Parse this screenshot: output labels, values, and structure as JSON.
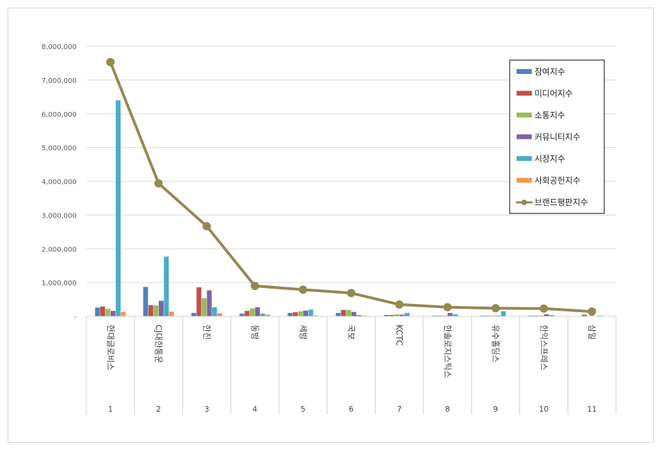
{
  "chart_data": {
    "type": "bar",
    "categories": [
      "1",
      "2",
      "3",
      "4",
      "5",
      "6",
      "7",
      "8",
      "9",
      "10",
      "11"
    ],
    "category_names": [
      "현대글로비스",
      "CJ대한통운",
      "한진",
      "동방",
      "세방",
      "국보",
      "KCTC",
      "한솔로지스틱스",
      "유수홀딩스",
      "한익스프레스",
      "삼일"
    ],
    "yticks": [
      "-",
      "1,000,000",
      "2,000,000",
      "3,000,000",
      "4,000,000",
      "5,000,000",
      "6,000,000",
      "7,000,000",
      "8,000,000"
    ],
    "ylim": [
      0,
      8000000
    ],
    "grid": true,
    "legend_position": "top-right",
    "series": [
      {
        "name": "참여지수",
        "type": "bar",
        "color": "#4F81BD",
        "values": [
          260000,
          870000,
          100000,
          80000,
          100000,
          100000,
          40000,
          20000,
          20000,
          20000,
          0
        ]
      },
      {
        "name": "미디어지수",
        "type": "bar",
        "color": "#C0504D",
        "values": [
          290000,
          330000,
          860000,
          160000,
          120000,
          190000,
          40000,
          20000,
          20000,
          20000,
          50000
        ]
      },
      {
        "name": "소통지수",
        "type": "bar",
        "color": "#9BBB59",
        "values": [
          220000,
          320000,
          540000,
          230000,
          150000,
          190000,
          60000,
          20000,
          20000,
          20000,
          10000
        ]
      },
      {
        "name": "커뮤니티지수",
        "type": "bar",
        "color": "#8064A2",
        "values": [
          160000,
          460000,
          770000,
          270000,
          170000,
          130000,
          50000,
          100000,
          20000,
          60000,
          10000
        ]
      },
      {
        "name": "시장지수",
        "type": "bar",
        "color": "#4BACC6",
        "values": [
          6400000,
          1770000,
          270000,
          80000,
          200000,
          40000,
          100000,
          60000,
          150000,
          40000,
          20000
        ]
      },
      {
        "name": "사회공헌지수",
        "type": "bar",
        "color": "#F79646",
        "values": [
          130000,
          140000,
          90000,
          50000,
          20000,
          20000,
          10000,
          10000,
          10000,
          10000,
          10000
        ]
      },
      {
        "name": "브랜드평판지수",
        "type": "line",
        "color": "#938953",
        "values": [
          7530000,
          3940000,
          2670000,
          900000,
          790000,
          690000,
          350000,
          270000,
          240000,
          230000,
          140000
        ]
      }
    ]
  }
}
